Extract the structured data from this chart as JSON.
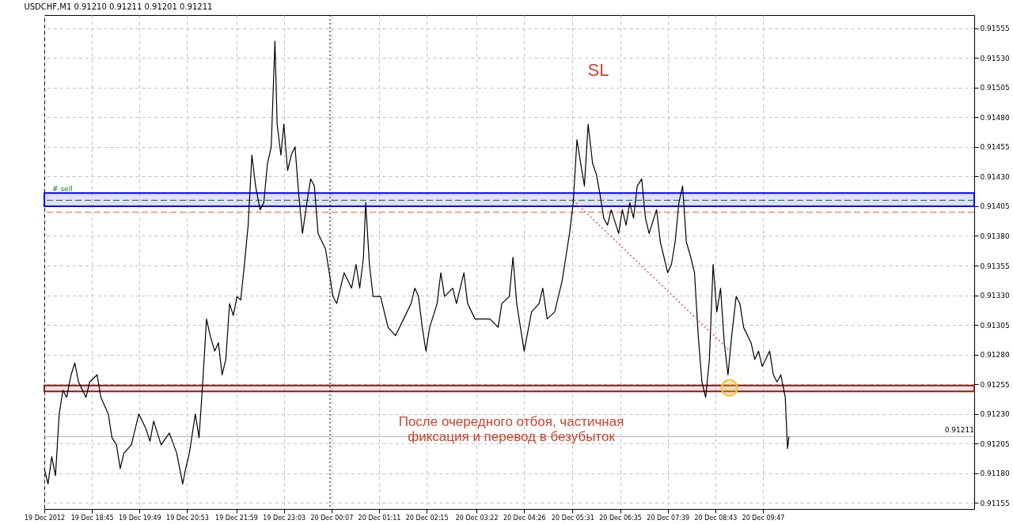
{
  "chart_data": {
    "type": "line",
    "title": "USDCHF,M1  0.91210 0.91211 0.91201 0.91211",
    "annotations": [
      "SL",
      "После очередного отбоя, частичная\nфиксация и перевод в безубыток"
    ],
    "xlim": [
      "2012-12-19T17:41",
      "2012-12-20T14:31"
    ],
    "ylim": [
      0.9115,
      0.91566
    ],
    "xticks": [
      {
        "value": "2012-12-19T17:41",
        "label": "19 Dec 2012"
      },
      {
        "value": "2012-12-19T18:45",
        "label": "19 Dec 18:45"
      },
      {
        "value": "2012-12-19T19:49",
        "label": "19 Dec 19:49"
      },
      {
        "value": "2012-12-19T20:53",
        "label": "19 Dec 20:53"
      },
      {
        "value": "2012-12-19T21:59",
        "label": "19 Dec 21:59"
      },
      {
        "value": "2012-12-19T23:03",
        "label": "19 Dec 23:03"
      },
      {
        "value": "2012-12-20T00:07",
        "label": "20 Dec 00:07"
      },
      {
        "value": "2012-12-20T01:11",
        "label": "20 Dec 01:11"
      },
      {
        "value": "2012-12-20T02:15",
        "label": "20 Dec 02:15"
      },
      {
        "value": "2012-12-20T03:22",
        "label": "20 Dec 03:22"
      },
      {
        "value": "2012-12-20T04:26",
        "label": "20 Dec 04:26"
      },
      {
        "value": "2012-12-20T05:31",
        "label": "20 Dec 05:31"
      },
      {
        "value": "2012-12-20T06:35",
        "label": "20 Dec 06:35"
      },
      {
        "value": "2012-12-20T07:39",
        "label": "20 Dec 07:39"
      },
      {
        "value": "2012-12-20T08:43",
        "label": "20 Dec 08:43"
      },
      {
        "value": "2012-12-20T09:47",
        "label": "20 Dec 09:47"
      }
    ],
    "yticks": [
      {
        "value": 0.91155,
        "label": "0.91155"
      },
      {
        "value": 0.9118,
        "label": "0.91180"
      },
      {
        "value": 0.91205,
        "label": "0.91205"
      },
      {
        "value": 0.9123,
        "label": "0.91230"
      },
      {
        "value": 0.91255,
        "label": "0.91255"
      },
      {
        "value": 0.9128,
        "label": "0.91280"
      },
      {
        "value": 0.91305,
        "label": "0.91305"
      },
      {
        "value": 0.9133,
        "label": "0.91330"
      },
      {
        "value": 0.91355,
        "label": "0.91355"
      },
      {
        "value": 0.9138,
        "label": "0.91380"
      },
      {
        "value": 0.91405,
        "label": "0.91405"
      },
      {
        "value": 0.9143,
        "label": "0.91430"
      },
      {
        "value": 0.91455,
        "label": "0.91455"
      },
      {
        "value": 0.9148,
        "label": "0.91480"
      },
      {
        "value": 0.91505,
        "label": "0.91505"
      },
      {
        "value": 0.9153,
        "label": "0.91530"
      },
      {
        "value": 0.91555,
        "label": "0.91555"
      }
    ],
    "grid": true,
    "ref_lines": [
      {
        "axis": "y",
        "value": 0.9141,
        "label": "# sell",
        "color": "#008000",
        "line_style": "dashed"
      },
      {
        "axis": "y",
        "value": 0.914,
        "label": null,
        "color": "#ff6020",
        "line_style": "dashed"
      },
      {
        "axis": "y",
        "value": 0.91211,
        "label": "0.91211",
        "color": "#b0b0b0",
        "line_style": "solid"
      },
      {
        "axis": "x",
        "value": "2012-12-20T00:05",
        "label": null,
        "color": "#000000",
        "line_style": "dotted"
      }
    ],
    "bands": [
      {
        "axis": "y",
        "from": 0.91405,
        "to": 0.91416,
        "label": null,
        "color": "#0000ff"
      },
      {
        "axis": "y",
        "from": 0.91249,
        "to": 0.91254,
        "label": null,
        "color": "#8b1a1a"
      }
    ],
    "series": [
      {
        "color": "#000000",
        "line_style": "solid",
        "x": [
          "2012-12-19T17:41",
          "2012-12-19T17:46",
          "2012-12-19T17:51",
          "2012-12-19T17:56",
          "2012-12-19T18:01",
          "2012-12-19T18:06",
          "2012-12-19T18:11",
          "2012-12-19T18:17",
          "2012-12-19T18:22",
          "2012-12-19T18:27",
          "2012-12-19T18:37",
          "2012-12-19T18:42",
          "2012-12-19T18:52",
          "2012-12-19T18:57",
          "2012-12-19T19:07",
          "2012-12-19T19:12",
          "2012-12-19T19:18",
          "2012-12-19T19:23",
          "2012-12-19T19:28",
          "2012-12-19T19:38",
          "2012-12-19T19:48",
          "2012-12-19T19:58",
          "2012-12-19T20:03",
          "2012-12-19T20:08",
          "2012-12-19T20:18",
          "2012-12-19T20:29",
          "2012-12-19T20:39",
          "2012-12-19T20:47",
          "2012-12-19T20:51",
          "2012-12-19T20:56",
          "2012-12-19T21:04",
          "2012-12-19T21:09",
          "2012-12-19T21:14",
          "2012-12-19T21:19",
          "2012-12-19T21:24",
          "2012-12-19T21:30",
          "2012-12-19T21:35",
          "2012-12-19T21:40",
          "2012-12-19T21:45",
          "2012-12-19T21:50",
          "2012-12-19T21:55",
          "2012-12-19T22:00",
          "2012-12-19T22:05",
          "2012-12-19T22:10",
          "2012-12-19T22:15",
          "2012-12-19T22:20",
          "2012-12-19T22:25",
          "2012-12-19T22:31",
          "2012-12-19T22:36",
          "2012-12-19T22:41",
          "2012-12-19T22:46",
          "2012-12-19T22:51",
          "2012-12-19T22:54",
          "2012-12-19T22:59",
          "2012-12-19T23:03",
          "2012-12-19T23:08",
          "2012-12-19T23:13",
          "2012-12-19T23:18",
          "2012-12-19T23:23",
          "2012-12-19T23:28",
          "2012-12-19T23:34",
          "2012-12-19T23:39",
          "2012-12-19T23:44",
          "2012-12-19T23:49",
          "2012-12-19T23:59",
          "2012-12-20T00:04",
          "2012-12-20T00:09",
          "2012-12-20T00:14",
          "2012-12-20T00:19",
          "2012-12-20T00:24",
          "2012-12-20T00:34",
          "2012-12-20T00:40",
          "2012-12-20T00:45",
          "2012-12-20T00:50",
          "2012-12-20T00:53",
          "2012-12-20T00:58",
          "2012-12-20T01:03",
          "2012-12-20T01:13",
          "2012-12-20T01:23",
          "2012-12-20T01:33",
          "2012-12-20T01:44",
          "2012-12-20T01:54",
          "2012-12-20T01:59",
          "2012-12-20T02:04",
          "2012-12-20T02:09",
          "2012-12-20T02:14",
          "2012-12-20T02:19",
          "2012-12-20T02:29",
          "2012-12-20T02:34",
          "2012-12-20T02:39",
          "2012-12-20T02:50",
          "2012-12-20T02:55",
          "2012-12-20T03:05",
          "2012-12-20T03:10",
          "2012-12-20T03:20",
          "2012-12-20T03:30",
          "2012-12-20T03:40",
          "2012-12-20T03:51",
          "2012-12-20T03:56",
          "2012-12-20T04:06",
          "2012-12-20T04:11",
          "2012-12-20T04:16",
          "2012-12-20T04:26",
          "2012-12-20T04:36",
          "2012-12-20T04:46",
          "2012-12-20T04:51",
          "2012-12-20T04:57",
          "2012-12-20T05:07",
          "2012-12-20T05:17",
          "2012-12-20T05:22",
          "2012-12-20T05:27",
          "2012-12-20T05:32",
          "2012-12-20T05:37",
          "2012-12-20T05:42",
          "2012-12-20T05:47",
          "2012-12-20T05:52",
          "2012-12-20T05:58",
          "2012-12-20T06:03",
          "2012-12-20T06:08",
          "2012-12-20T06:13",
          "2012-12-20T06:18",
          "2012-12-20T06:23",
          "2012-12-20T06:33",
          "2012-12-20T06:38",
          "2012-12-20T06:43",
          "2012-12-20T06:48",
          "2012-12-20T06:53",
          "2012-12-20T06:58",
          "2012-12-20T07:04",
          "2012-12-20T07:09",
          "2012-12-20T07:14",
          "2012-12-20T07:24",
          "2012-12-20T07:29",
          "2012-12-20T07:34",
          "2012-12-20T07:39",
          "2012-12-20T07:44",
          "2012-12-20T07:49",
          "2012-12-20T07:54",
          "2012-12-20T07:59",
          "2012-12-20T08:04",
          "2012-12-20T08:10",
          "2012-12-20T08:15",
          "2012-12-20T08:20",
          "2012-12-20T08:25",
          "2012-12-20T08:30",
          "2012-12-20T08:35",
          "2012-12-20T08:40",
          "2012-12-20T08:45",
          "2012-12-20T08:50",
          "2012-12-20T08:55",
          "2012-12-20T09:00",
          "2012-12-20T09:05",
          "2012-12-20T09:11",
          "2012-12-20T09:16",
          "2012-12-20T09:21",
          "2012-12-20T09:31",
          "2012-12-20T09:36",
          "2012-12-20T09:41",
          "2012-12-20T09:46",
          "2012-12-20T09:56",
          "2012-12-20T10:01",
          "2012-12-20T10:06",
          "2012-12-20T10:11",
          "2012-12-20T10:17",
          "2012-12-20T10:20",
          "2012-12-20T10:22"
        ],
        "values": [
          0.91184,
          0.91171,
          0.91194,
          0.91178,
          0.9123,
          0.9125,
          0.91244,
          0.91263,
          0.91273,
          0.91257,
          0.91244,
          0.91257,
          0.91263,
          0.91244,
          0.9123,
          0.9121,
          0.91204,
          0.91184,
          0.91197,
          0.91204,
          0.9123,
          0.91217,
          0.91207,
          0.91224,
          0.91204,
          0.91214,
          0.91197,
          0.91171,
          0.91184,
          0.91197,
          0.9123,
          0.9121,
          0.91257,
          0.9131,
          0.91296,
          0.91283,
          0.9129,
          0.91263,
          0.91276,
          0.91323,
          0.91313,
          0.91329,
          0.91326,
          0.91356,
          0.91389,
          0.91448,
          0.91422,
          0.91402,
          0.91408,
          0.91441,
          0.91455,
          0.91544,
          0.91474,
          0.91448,
          0.91474,
          0.91435,
          0.91448,
          0.91455,
          0.91415,
          0.91382,
          0.91408,
          0.91428,
          0.91422,
          0.91382,
          0.91369,
          0.91349,
          0.91329,
          0.91323,
          0.91336,
          0.91349,
          0.91336,
          0.91356,
          0.91336,
          0.91362,
          0.91408,
          0.91356,
          0.91329,
          0.91329,
          0.91303,
          0.91296,
          0.9131,
          0.91323,
          0.91336,
          0.91329,
          0.91303,
          0.91283,
          0.91303,
          0.91323,
          0.91349,
          0.91329,
          0.91336,
          0.91323,
          0.91349,
          0.91323,
          0.9131,
          0.9131,
          0.9131,
          0.91303,
          0.91323,
          0.91329,
          0.91362,
          0.91323,
          0.91283,
          0.91316,
          0.91323,
          0.91336,
          0.9131,
          0.91316,
          0.91342,
          0.91362,
          0.91382,
          0.91408,
          0.91461,
          0.91441,
          0.91422,
          0.91474,
          0.91441,
          0.91432,
          0.91415,
          0.91395,
          0.91389,
          0.91402,
          0.91382,
          0.91402,
          0.91389,
          0.91408,
          0.91395,
          0.91422,
          0.91428,
          0.91395,
          0.91382,
          0.91402,
          0.91375,
          0.91362,
          0.91349,
          0.91356,
          0.91375,
          0.91408,
          0.91422,
          0.91375,
          0.91362,
          0.91349,
          0.91296,
          0.91257,
          0.91244,
          0.91276,
          0.91356,
          0.91316,
          0.91336,
          0.9129,
          0.91263,
          0.91296,
          0.91329,
          0.91323,
          0.91303,
          0.9129,
          0.91276,
          0.91283,
          0.9127,
          0.91283,
          0.91263,
          0.91257,
          0.91263,
          0.91244,
          0.91201,
          0.91211
        ]
      },
      {
        "type": "line",
        "color": "#e03030",
        "line_style": "dotted",
        "x": [
          "2012-12-20T05:32",
          "2012-12-20T09:03"
        ],
        "values": [
          0.9141,
          0.91283
        ]
      },
      {
        "type": "scatter",
        "color": "#f0c040",
        "marker": "circle",
        "x": [
          "2012-12-20T09:02"
        ],
        "values": [
          0.91252
        ]
      }
    ]
  }
}
